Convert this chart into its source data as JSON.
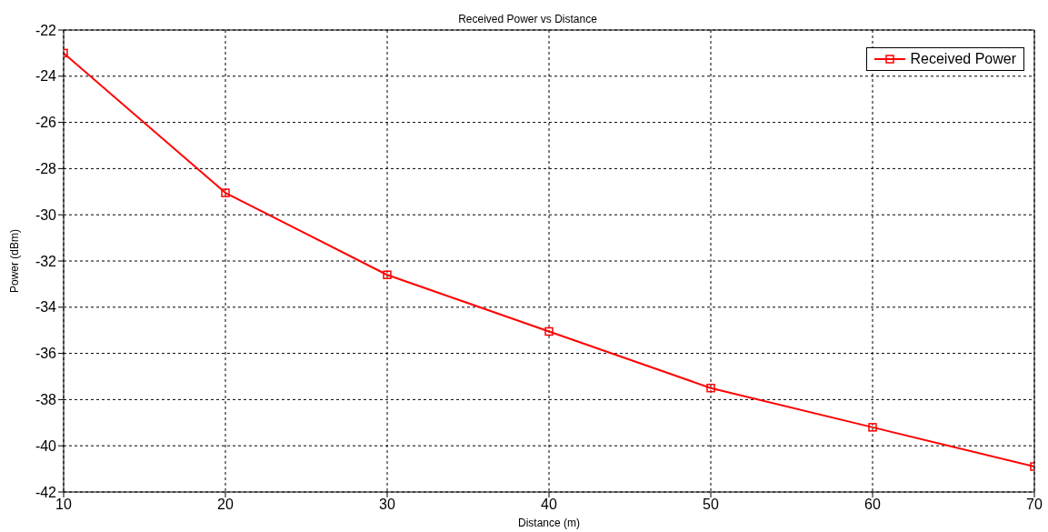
{
  "chart_data": {
    "type": "line",
    "title": "Received Power vs Distance",
    "xlabel": "Distance (m)",
    "ylabel": "Power (dBm)",
    "x": [
      10,
      20,
      30,
      40,
      50,
      60,
      70
    ],
    "series": [
      {
        "name": "Received Power",
        "color": "#ff0000",
        "values": [
          -23.0,
          -29.05,
          -32.6,
          -35.05,
          -37.5,
          -39.2,
          -40.9
        ]
      }
    ],
    "xlim": [
      10,
      70
    ],
    "xticks": [
      10,
      20,
      30,
      40,
      50,
      60,
      70
    ],
    "ylim": [
      -42,
      -22
    ],
    "yticks": [
      -42,
      -40,
      -38,
      -36,
      -34,
      -32,
      -30,
      -28,
      -26,
      -24,
      -22
    ],
    "grid": true,
    "legend": "top right",
    "marker": "square",
    "line_style": "solid"
  }
}
